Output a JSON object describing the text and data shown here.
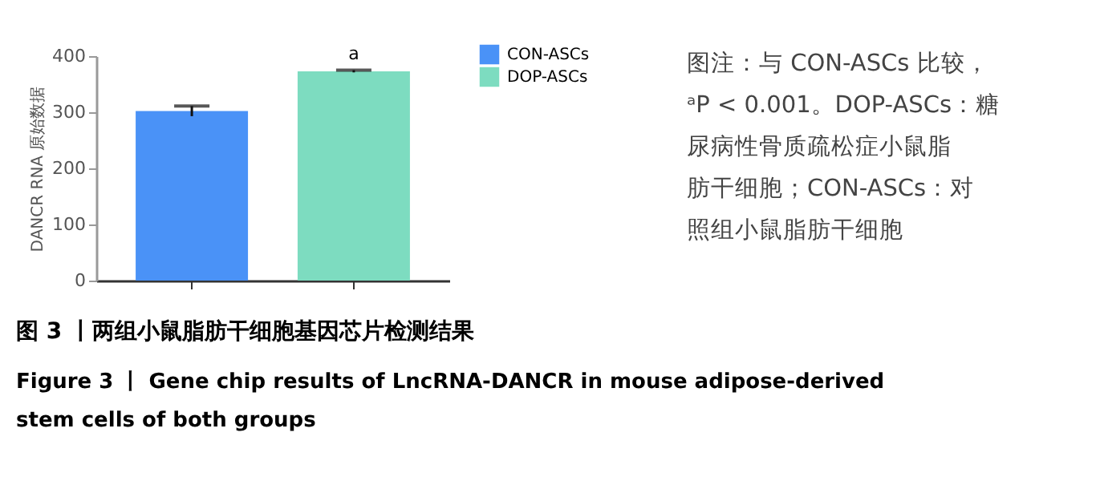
{
  "chart_data": {
    "type": "bar",
    "title": "图 3 丨两组小鼠脂肪干细胞基因芯片检测结果",
    "subtitle": "Figure 3 丨 Gene chip results of LncRNA-DANCR in mouse adipose-derived\nstem cells of both groups",
    "ylabel": "DANCR RNA 原始数据",
    "categories": [
      null,
      null
    ],
    "series": [
      {
        "name": "CON-ASCs",
        "color": "#4a92f7",
        "values": [
          302,
          null
        ],
        "errors": [
          9,
          null
        ]
      },
      {
        "name": "DOP-ASCs",
        "color": "#7ddcc0",
        "values": [
          null,
          373
        ],
        "errors": [
          null,
          2
        ]
      }
    ],
    "ylim": [
      0,
      400
    ],
    "yticks": [
      0,
      100,
      200,
      300,
      400
    ],
    "annotations": [
      {
        "text": "a",
        "y": 388
      },
      "图注：与 CON-ASCs 比较，",
      "ᵃP < 0.001。DOP-ASCs：糖",
      "尿病性骨质疏松症小鼠脂",
      "肪干细胞；CON-ASCs：对",
      "照组小鼠脂肪干细胞"
    ],
    "legend": "top right",
    "tick_labels": "y",
    "grid": false
  }
}
